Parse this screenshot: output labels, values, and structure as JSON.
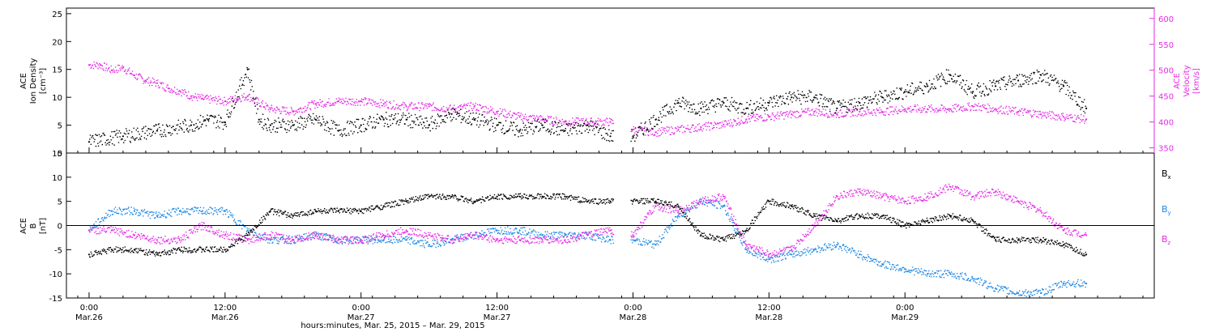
{
  "chart_data": [
    {
      "type": "scatter",
      "panel": "top",
      "ylabel_left": [
        "ACE",
        "Ion Density",
        "[cm⁻³]"
      ],
      "ylabel_right": [
        "ACE",
        "Velocity",
        "[km/s]"
      ],
      "ylim": [
        0,
        26
      ],
      "yticks": [
        0,
        5,
        10,
        15,
        20,
        25
      ],
      "ylim_right": [
        340,
        620
      ],
      "yticks_right": [
        350,
        400,
        450,
        500,
        550,
        600
      ],
      "xlim_hours": [
        -2,
        94
      ],
      "series": [
        {
          "name": "Ion Density",
          "axis": "left",
          "color": "#000000",
          "x": [
            0,
            3,
            6,
            9,
            10.5,
            12,
            14,
            15,
            16,
            18,
            20,
            22,
            24,
            26,
            28,
            30,
            32,
            34,
            36,
            38,
            40,
            42,
            44,
            46,
            48,
            50,
            52,
            54,
            56,
            58,
            60,
            62,
            64,
            66,
            68,
            70,
            72,
            74,
            76,
            78,
            80,
            82,
            84,
            86,
            88
          ],
          "y": [
            2,
            3,
            4,
            5,
            6,
            5.5,
            15,
            6,
            5,
            5,
            6,
            4,
            5,
            6,
            6,
            5,
            7,
            6,
            5,
            4,
            5,
            4,
            5,
            3,
            3,
            6,
            9,
            8,
            9,
            8,
            9,
            10,
            10,
            8,
            9,
            10,
            11,
            12,
            14,
            11,
            12,
            13,
            14,
            12,
            8
          ]
        },
        {
          "name": "Velocity",
          "axis": "right",
          "color": "#e62be6",
          "x": [
            0,
            1,
            2,
            3,
            4,
            5,
            6,
            7,
            8,
            9,
            10,
            12,
            14,
            16,
            18,
            20,
            22,
            24,
            26,
            28,
            30,
            32,
            34,
            36,
            38,
            40,
            42,
            44,
            46,
            48,
            50,
            52,
            54,
            56,
            58,
            60,
            62,
            64,
            66,
            68,
            70,
            72,
            74,
            76,
            78,
            80,
            82,
            84,
            86,
            88
          ],
          "y": [
            510,
            510,
            500,
            505,
            490,
            480,
            475,
            465,
            460,
            450,
            445,
            440,
            450,
            425,
            420,
            435,
            440,
            440,
            435,
            430,
            430,
            425,
            430,
            420,
            410,
            405,
            400,
            400,
            400,
            385,
            380,
            385,
            390,
            395,
            405,
            410,
            415,
            420,
            415,
            420,
            420,
            425,
            425,
            425,
            430,
            425,
            420,
            415,
            410,
            405
          ]
        }
      ]
    },
    {
      "type": "scatter",
      "panel": "bottom",
      "ylabel_left": [
        "ACE",
        "B",
        "[nT]"
      ],
      "ylim": [
        -15,
        15
      ],
      "yticks": [
        -15,
        -10,
        -5,
        0,
        5,
        10,
        15
      ],
      "xlim_hours": [
        -2,
        94
      ],
      "series": [
        {
          "name": "Bx",
          "color": "#000000",
          "x": [
            0,
            2,
            4,
            6,
            8,
            10,
            12,
            14,
            16,
            18,
            20,
            22,
            24,
            26,
            28,
            30,
            32,
            34,
            36,
            38,
            40,
            42,
            44,
            46,
            48,
            50,
            52,
            54,
            56,
            58,
            60,
            62,
            64,
            66,
            68,
            70,
            72,
            74,
            76,
            78,
            80,
            82,
            84,
            86,
            88
          ],
          "y": [
            -6,
            -5,
            -5,
            -6,
            -5,
            -5,
            -5,
            -2,
            3,
            2,
            3,
            3,
            3,
            4,
            5,
            6,
            6,
            5,
            6,
            6,
            6,
            6,
            5,
            5,
            5,
            5,
            4,
            -2,
            -3,
            -1,
            5,
            4,
            2,
            1,
            2,
            2,
            0,
            1,
            2,
            1,
            -3,
            -3,
            -3,
            -4,
            -6
          ]
        },
        {
          "name": "By",
          "color": "#1e88e5",
          "x": [
            0,
            2,
            4,
            6,
            8,
            10,
            12,
            14,
            16,
            18,
            20,
            22,
            24,
            26,
            28,
            30,
            32,
            34,
            36,
            38,
            40,
            42,
            44,
            46,
            48,
            50,
            52,
            54,
            56,
            58,
            60,
            62,
            64,
            66,
            68,
            70,
            72,
            74,
            76,
            78,
            80,
            82,
            84,
            86,
            88
          ],
          "y": [
            -1,
            3,
            3,
            2,
            3,
            3,
            3,
            -1,
            -3,
            -3,
            -2,
            -3,
            -3,
            -3,
            -3,
            -4,
            -3,
            -2,
            -1,
            -1,
            -2,
            -2,
            -2,
            -3,
            -3,
            -4,
            2,
            5,
            4,
            -5,
            -7,
            -6,
            -5,
            -4,
            -6,
            -8,
            -9,
            -10,
            -10,
            -11,
            -13,
            -14,
            -14,
            -12,
            -12
          ]
        },
        {
          "name": "Bz",
          "color": "#e62be6",
          "x": [
            0,
            2,
            4,
            6,
            8,
            10,
            12,
            14,
            16,
            18,
            20,
            22,
            24,
            26,
            28,
            30,
            32,
            34,
            36,
            38,
            40,
            42,
            44,
            46,
            48,
            50,
            52,
            54,
            56,
            58,
            60,
            62,
            64,
            66,
            68,
            70,
            72,
            74,
            76,
            78,
            80,
            82,
            84,
            86,
            88
          ],
          "y": [
            -1,
            -1,
            -2,
            -3,
            -3,
            0,
            -2,
            -3,
            -2,
            -3,
            -2,
            -3,
            -3,
            -2,
            -1,
            -2,
            -3,
            -2,
            -3,
            -3,
            -3,
            -3,
            -2,
            -1,
            -2,
            4,
            3,
            5,
            6,
            -4,
            -6,
            -5,
            0,
            6,
            7,
            6,
            5,
            6,
            8,
            6,
            7,
            5,
            3,
            -1,
            -2
          ]
        }
      ]
    }
  ],
  "legend": [
    {
      "label": "B",
      "sub": "x",
      "color": "#000000"
    },
    {
      "label": "B",
      "sub": "y",
      "color": "#1e88e5"
    },
    {
      "label": "B",
      "sub": "z",
      "color": "#e62be6"
    }
  ],
  "x_axis": {
    "ticks": [
      {
        "hours": 0,
        "time": "0:00",
        "date": "Mar.26"
      },
      {
        "hours": 12,
        "time": "12:00",
        "date": "Mar.26"
      },
      {
        "hours": 24,
        "time": "0:00",
        "date": "Mar.27"
      },
      {
        "hours": 36,
        "time": "12:00",
        "date": "Mar.27"
      },
      {
        "hours": 48,
        "time": "0:00",
        "date": "Mar.28"
      },
      {
        "hours": 60,
        "time": "12:00",
        "date": "Mar.28"
      },
      {
        "hours": 72,
        "time": "0:00",
        "date": "Mar.29"
      }
    ],
    "label": "hours:minutes, Mar. 25, 2015 – Mar. 29, 2015"
  },
  "colors": {
    "black": "#000000",
    "magenta": "#e62be6",
    "blue": "#1e88e5"
  }
}
